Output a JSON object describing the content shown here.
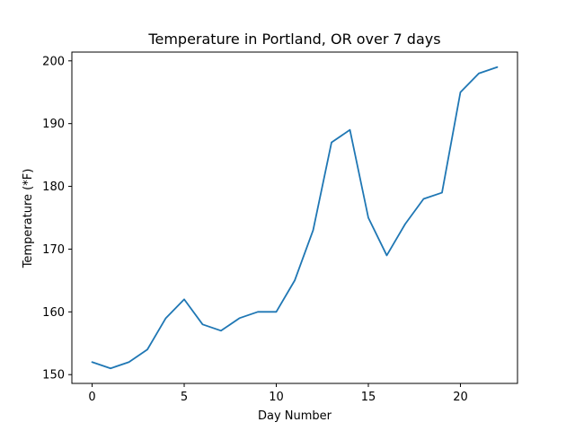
{
  "chart_data": {
    "type": "line",
    "title": "Temperature in Portland, OR over 7 days",
    "xlabel": "Day Number",
    "ylabel": "Temperature (*F)",
    "xlim": [
      -1.1,
      23.1
    ],
    "ylim": [
      148.6,
      201.4
    ],
    "x_ticks": [
      0,
      5,
      10,
      15,
      20
    ],
    "y_ticks": [
      150,
      160,
      170,
      180,
      190,
      200
    ],
    "grid": false,
    "legend": "none",
    "series": [
      {
        "color": "#1f77b4",
        "x": [
          0,
          1,
          2,
          3,
          4,
          5,
          6,
          7,
          8,
          9,
          10,
          11,
          12,
          13,
          14,
          15,
          16,
          17,
          18,
          19,
          20,
          21,
          22
        ],
        "values": [
          152,
          151,
          152,
          154,
          159,
          162,
          158,
          157,
          159,
          160,
          160,
          165,
          173,
          187,
          189,
          175,
          169,
          174,
          178,
          179,
          195,
          198,
          199
        ]
      }
    ]
  }
}
